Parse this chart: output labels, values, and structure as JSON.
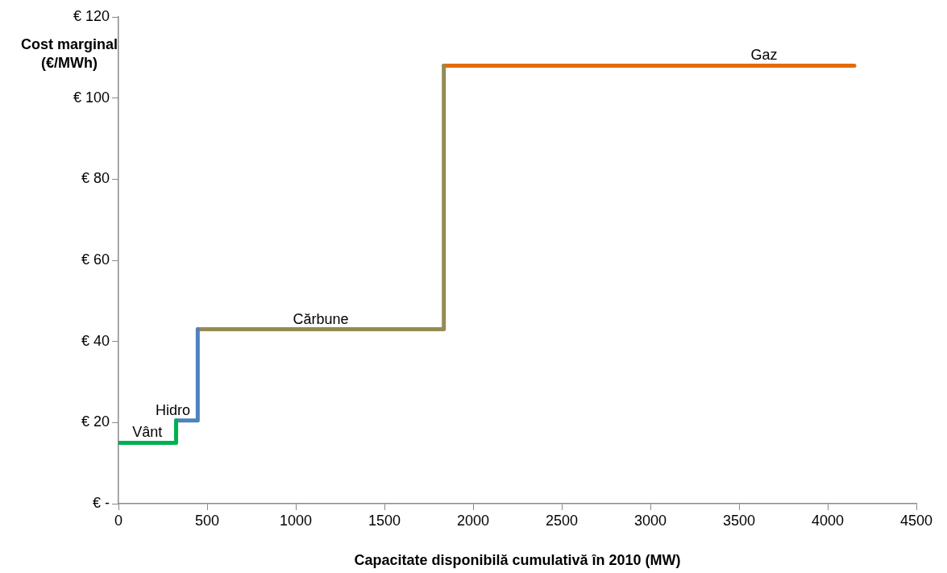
{
  "chart_data": {
    "type": "line",
    "xlabel": "Capacitate disponibilă cumulativă în 2010 (MW)",
    "ylabel": "Cost marginal (€/MWh)",
    "xlim": [
      0,
      4500
    ],
    "xticks": [
      0,
      500,
      1000,
      1500,
      2000,
      2500,
      3000,
      3500,
      4000,
      4500
    ],
    "ylim": [
      0,
      120
    ],
    "yticks": [
      {
        "value": 0,
        "label": "€ -"
      },
      {
        "value": 20,
        "label": "€ 20"
      },
      {
        "value": 40,
        "label": "€ 40"
      },
      {
        "value": 60,
        "label": "€ 60"
      },
      {
        "value": 80,
        "label": "€ 80"
      },
      {
        "value": 100,
        "label": "€ 100"
      },
      {
        "value": 120,
        "label": "€ 120"
      }
    ],
    "grid": false,
    "legend": false,
    "marker": "none",
    "line_style": "solid",
    "series": [
      {
        "name": "Vânt",
        "color": "#00b050",
        "x": [
          0,
          325,
          325
        ],
        "values": [
          15,
          15,
          20.5
        ]
      },
      {
        "name": "Hidro",
        "color": "#4f81bd",
        "x": [
          325,
          447,
          447
        ],
        "values": [
          20.5,
          20.5,
          43
        ]
      },
      {
        "name": "Cărbune",
        "color": "#948a54",
        "x": [
          447,
          1835,
          1835
        ],
        "values": [
          43,
          43,
          108
        ]
      },
      {
        "name": "Gaz",
        "color": "#e36c09",
        "x": [
          1835,
          4150
        ],
        "values": [
          108,
          108
        ]
      }
    ]
  }
}
